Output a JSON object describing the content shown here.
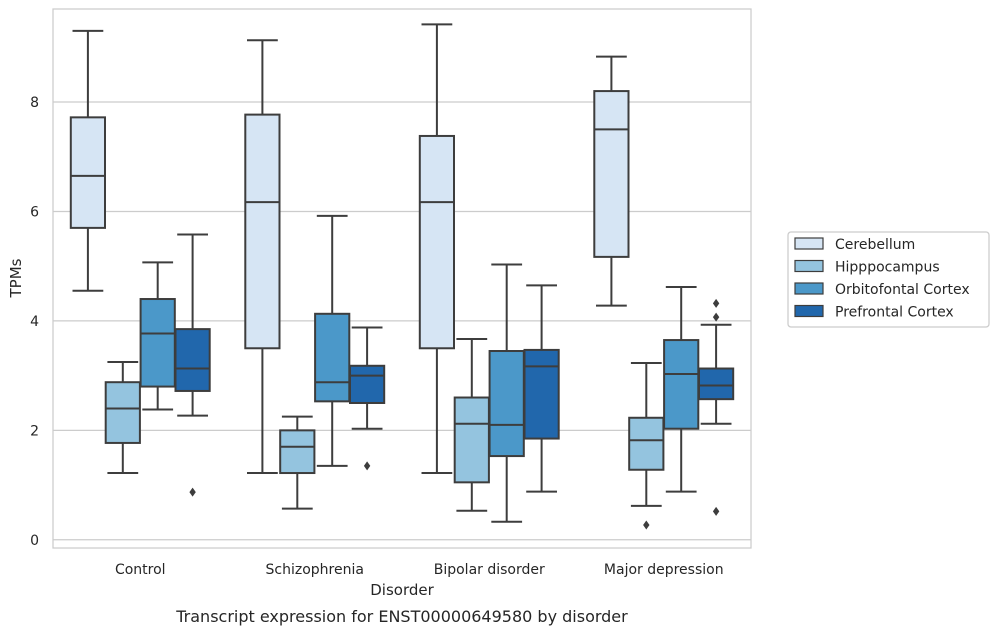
{
  "chart_data": {
    "type": "box",
    "caption": "Transcript expression for ENST00000649580 by disorder",
    "xlabel": "Disorder",
    "ylabel": "TPMs",
    "ylim": [
      -0.15,
      9.7
    ],
    "yticks": [
      0,
      2,
      4,
      6,
      8
    ],
    "ytick_labels": [
      "0",
      "2",
      "4",
      "6",
      "8"
    ],
    "grid": "horizontal",
    "legend_position": "right",
    "categories": [
      "Control",
      "Schizophrenia",
      "Bipolar disorder",
      "Major depression"
    ],
    "series": [
      {
        "name": "Cerebellum",
        "color": "#d6e5f4",
        "boxes": [
          {
            "whislo": 4.55,
            "q1": 5.7,
            "med": 6.65,
            "q3": 7.72,
            "whishi": 9.3,
            "fliers": []
          },
          {
            "whislo": 1.22,
            "q1": 3.5,
            "med": 6.17,
            "q3": 7.77,
            "whishi": 9.13,
            "fliers": []
          },
          {
            "whislo": 1.22,
            "q1": 3.5,
            "med": 6.17,
            "q3": 7.38,
            "whishi": 9.42,
            "fliers": []
          },
          {
            "whislo": 4.28,
            "q1": 5.17,
            "med": 7.5,
            "q3": 8.2,
            "whishi": 8.83,
            "fliers": []
          }
        ]
      },
      {
        "name": "Hipppocampus",
        "color": "#94c4df",
        "boxes": [
          {
            "whislo": 1.22,
            "q1": 1.77,
            "med": 2.4,
            "q3": 2.88,
            "whishi": 3.25,
            "fliers": []
          },
          {
            "whislo": 0.57,
            "q1": 1.22,
            "med": 1.7,
            "q3": 2.0,
            "whishi": 2.25,
            "fliers": []
          },
          {
            "whislo": 0.53,
            "q1": 1.05,
            "med": 2.12,
            "q3": 2.6,
            "whishi": 3.67,
            "fliers": []
          },
          {
            "whislo": 0.62,
            "q1": 1.28,
            "med": 1.82,
            "q3": 2.23,
            "whishi": 3.23,
            "fliers": [
              0.27
            ]
          }
        ]
      },
      {
        "name": "Orbitofontal Cortex",
        "color": "#4b98c9",
        "boxes": [
          {
            "whislo": 2.38,
            "q1": 2.8,
            "med": 3.77,
            "q3": 4.4,
            "whishi": 5.07,
            "fliers": []
          },
          {
            "whislo": 1.35,
            "q1": 2.53,
            "med": 2.88,
            "q3": 4.13,
            "whishi": 5.92,
            "fliers": []
          },
          {
            "whislo": 0.33,
            "q1": 1.53,
            "med": 2.1,
            "q3": 3.45,
            "whishi": 5.03,
            "fliers": []
          },
          {
            "whislo": 0.88,
            "q1": 2.03,
            "med": 3.03,
            "q3": 3.65,
            "whishi": 4.62,
            "fliers": []
          }
        ]
      },
      {
        "name": "Prefrontal Cortex",
        "color": "#2167ac",
        "boxes": [
          {
            "whislo": 2.27,
            "q1": 2.72,
            "med": 3.13,
            "q3": 3.85,
            "whishi": 5.58,
            "fliers": [
              0.87
            ]
          },
          {
            "whislo": 2.03,
            "q1": 2.5,
            "med": 3.0,
            "q3": 3.18,
            "whishi": 3.88,
            "fliers": [
              1.35
            ]
          },
          {
            "whislo": 0.88,
            "q1": 1.85,
            "med": 3.17,
            "q3": 3.47,
            "whishi": 4.65,
            "fliers": []
          },
          {
            "whislo": 2.12,
            "q1": 2.57,
            "med": 2.82,
            "q3": 3.13,
            "whishi": 3.93,
            "fliers": [
              0.52,
              4.07,
              4.32
            ]
          }
        ]
      }
    ]
  }
}
